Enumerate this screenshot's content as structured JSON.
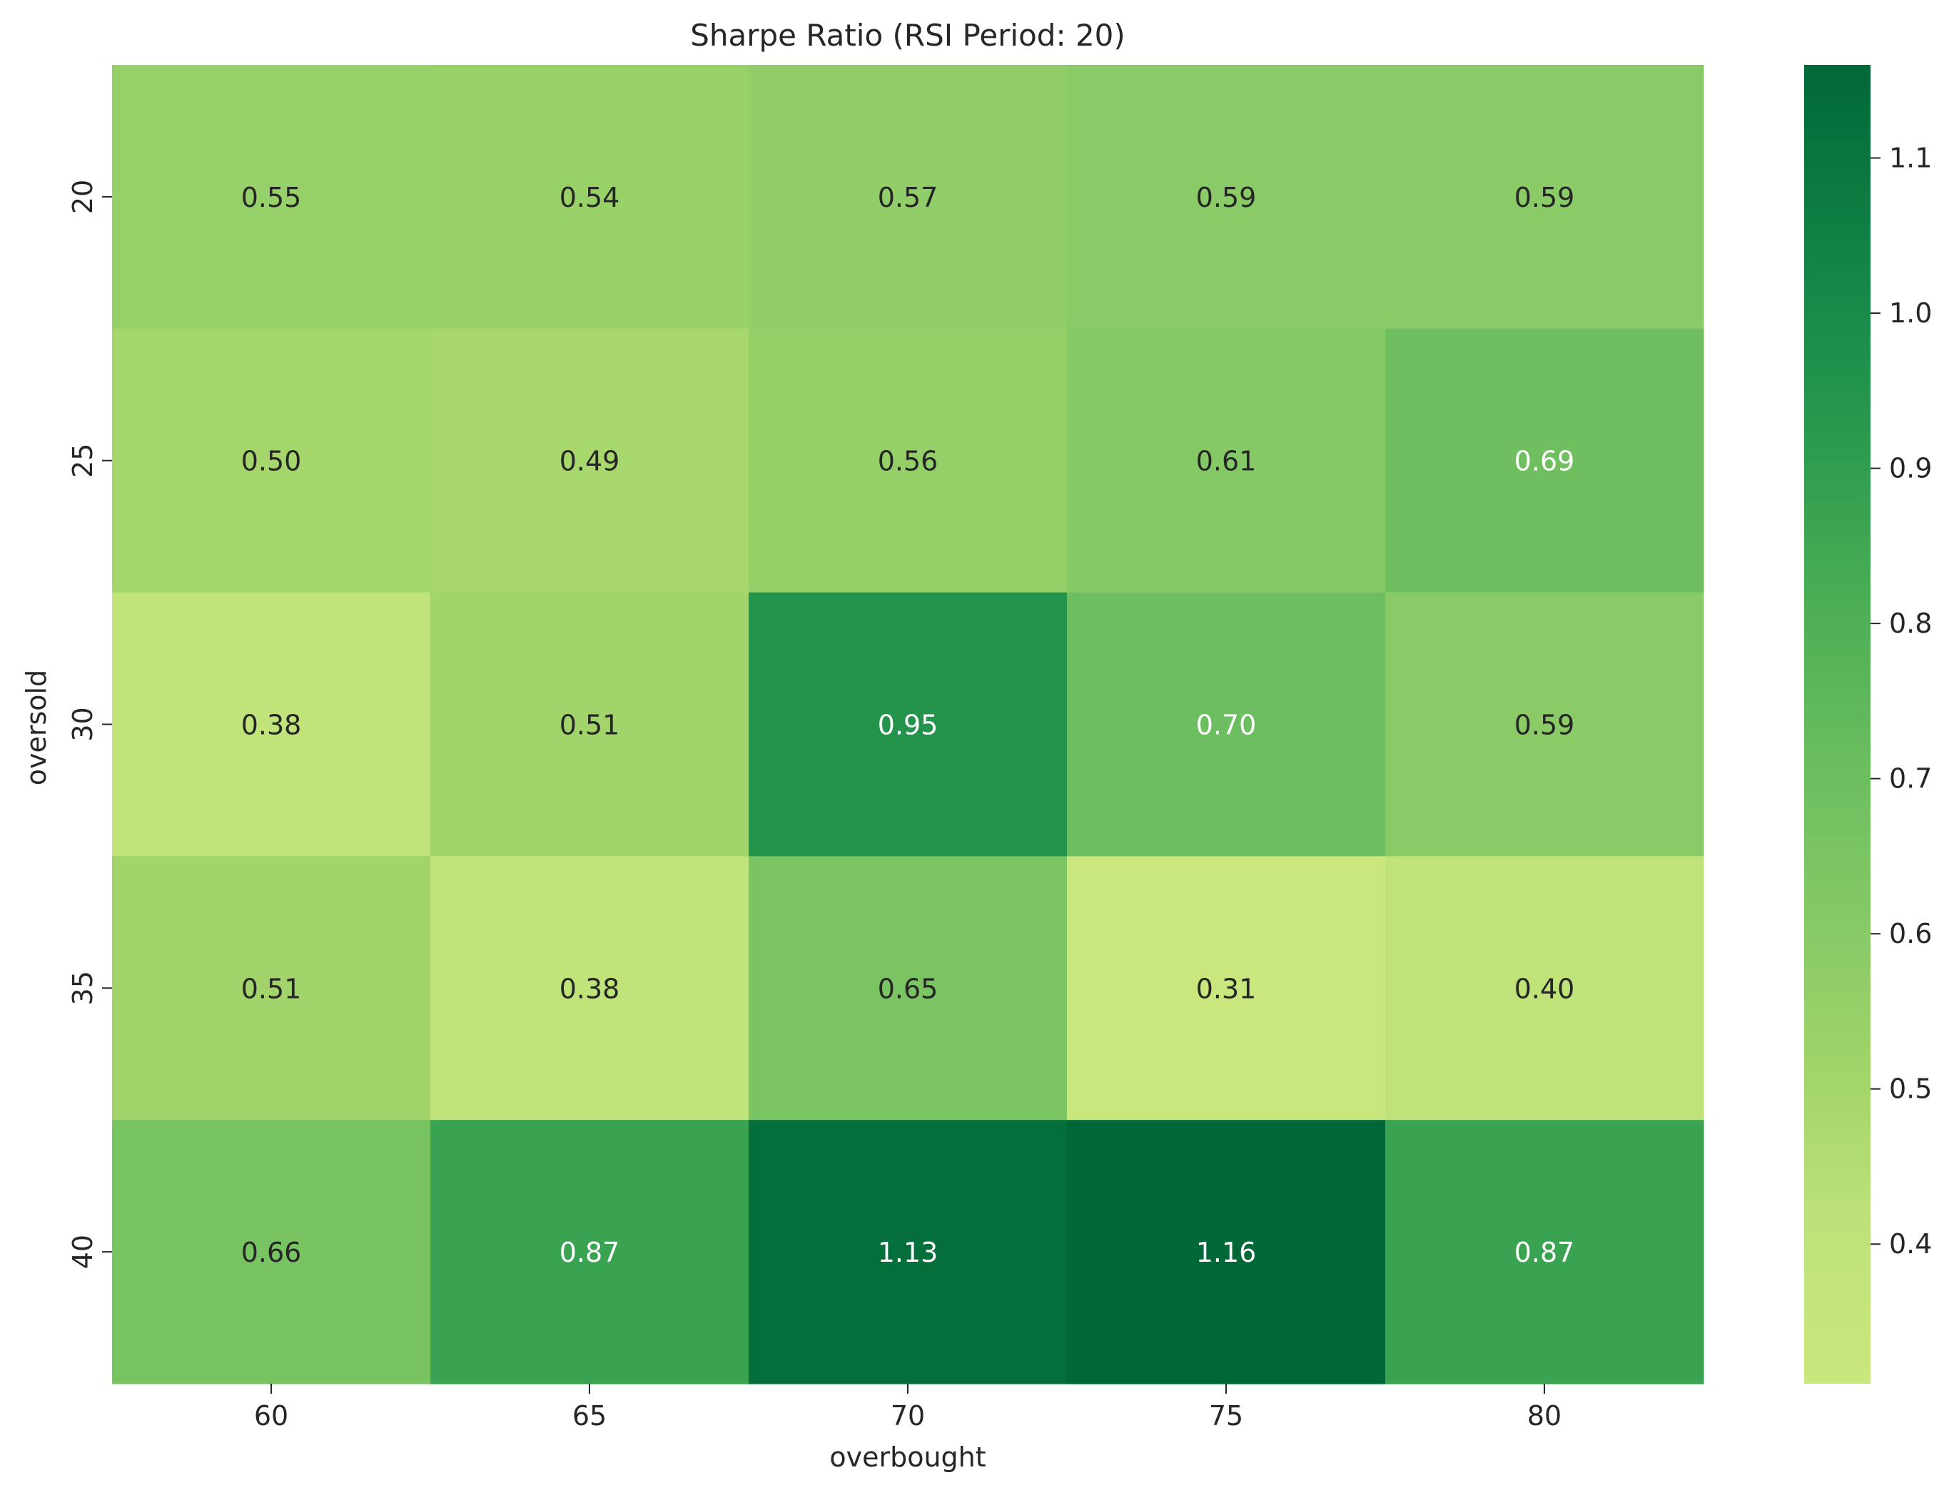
{
  "chart_data": {
    "type": "heatmap",
    "title": "Sharpe Ratio (RSI Period: 20)",
    "xlabel": "overbought",
    "ylabel": "oversold",
    "x_categories": [
      "60",
      "65",
      "70",
      "75",
      "80"
    ],
    "y_categories": [
      "20",
      "25",
      "30",
      "35",
      "40"
    ],
    "values": [
      [
        0.55,
        0.54,
        0.57,
        0.59,
        0.59
      ],
      [
        0.5,
        0.49,
        0.56,
        0.61,
        0.69
      ],
      [
        0.38,
        0.51,
        0.95,
        0.7,
        0.59
      ],
      [
        0.51,
        0.38,
        0.65,
        0.31,
        0.4
      ],
      [
        0.66,
        0.87,
        1.13,
        1.16,
        0.87
      ]
    ],
    "value_labels": [
      [
        "0.55",
        "0.54",
        "0.57",
        "0.59",
        "0.59"
      ],
      [
        "0.50",
        "0.49",
        "0.56",
        "0.61",
        "0.69"
      ],
      [
        "0.38",
        "0.51",
        "0.95",
        "0.70",
        "0.59"
      ],
      [
        "0.51",
        "0.38",
        "0.65",
        "0.31",
        "0.40"
      ],
      [
        "0.66",
        "0.87",
        "1.13",
        "1.16",
        "0.87"
      ]
    ],
    "colorbar": {
      "vmin": 0.31,
      "vmax": 1.16,
      "ticks": [
        0.4,
        0.5,
        0.6,
        0.7,
        0.8,
        0.9,
        1.0,
        1.1
      ],
      "tick_labels": [
        "0.4",
        "0.5",
        "0.6",
        "0.7",
        "0.8",
        "0.9",
        "1.0",
        "1.1"
      ],
      "colormap": "YlGn-like",
      "color_low": "#c9e77c",
      "color_high": "#006837"
    },
    "grid": false,
    "annotation_dark_text": "#262626",
    "annotation_light_text": "#ffffff"
  }
}
